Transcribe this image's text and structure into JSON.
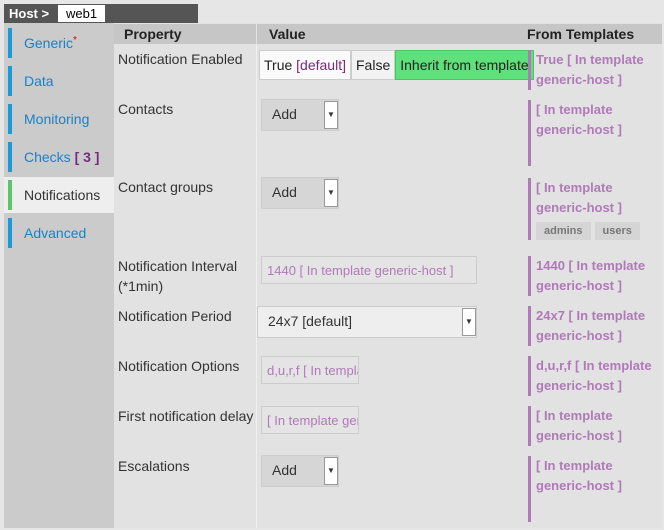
{
  "breadcrumb": {
    "root": "Host >",
    "name": "web1"
  },
  "sidebar": {
    "items": [
      {
        "label": "Generic",
        "marker": "*"
      },
      {
        "label": "Data"
      },
      {
        "label": "Monitoring"
      },
      {
        "label": "Checks",
        "count": "[ 3 ]"
      },
      {
        "label": "Notifications",
        "active": true
      },
      {
        "label": "Advanced"
      }
    ]
  },
  "table": {
    "headers": {
      "property": "Property",
      "value": "Value",
      "templates": "From Templates"
    },
    "rows": [
      {
        "label": "Notification Enabled",
        "options": {
          "true": "True",
          "default": "[default]",
          "false": "False",
          "inherit": "Inherit from template"
        },
        "template": "True [ In template generic-host ]"
      },
      {
        "label": "Contacts",
        "select": "Add",
        "template": "[ In template generic-host ]"
      },
      {
        "label": "Contact groups",
        "select": "Add",
        "template": "[ In template generic-host ]",
        "tags": [
          "admins",
          "users"
        ]
      },
      {
        "label": "Notification Interval (*1min)",
        "placeholder": "1440 [ In template generic-host ]",
        "template": "1440 [ In template generic-host ]"
      },
      {
        "label": "Notification Period",
        "select": "24x7 [default]",
        "template": "24x7 [ In template generic-host ]"
      },
      {
        "label": "Notification Options",
        "placeholder": "d,u,r,f [ In template generic-host ]",
        "template": "d,u,r,f [ In template generic-host ]"
      },
      {
        "label": "First notification delay",
        "placeholder": "[ In template generic-host ]",
        "template": "[ In template generic-host ]"
      },
      {
        "label": "Escalations",
        "select": "Add",
        "template": "[ In template generic-host ]"
      }
    ]
  },
  "colors": {
    "accent": "#1a82c4",
    "active": "#5cc46a",
    "inherit": "#5ee07a",
    "template": "#b07ab8"
  }
}
